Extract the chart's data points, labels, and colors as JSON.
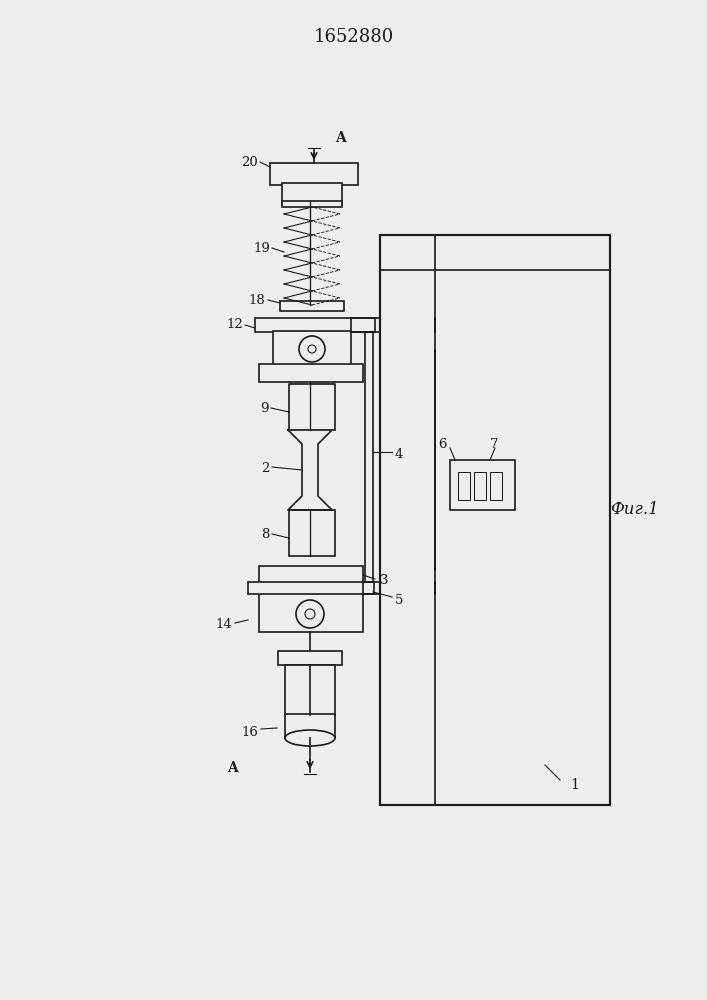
{
  "title": "1652880",
  "fig_label": "Фиг.1",
  "bg": "#f0eeea",
  "lc": "#1a1a1a",
  "lw": 1.2,
  "tlw": 0.8
}
